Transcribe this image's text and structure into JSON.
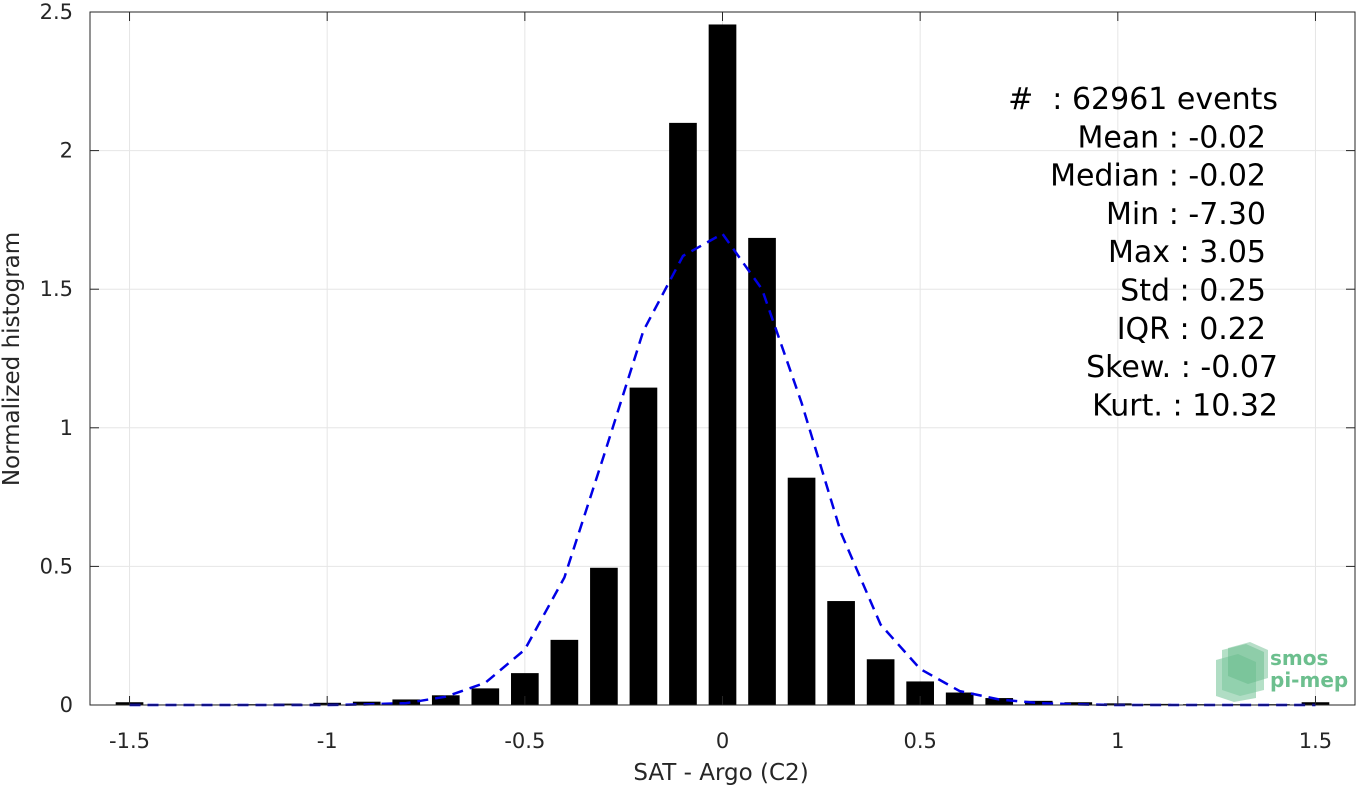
{
  "chart_data": {
    "type": "bar",
    "xlabel": "SAT - Argo (C2)",
    "ylabel": "Normalized histogram",
    "xlim": [
      -1.6,
      1.6
    ],
    "ylim": [
      0,
      2.5
    ],
    "xticks": [
      -1.5,
      -1,
      -0.5,
      0,
      0.5,
      1,
      1.5
    ],
    "xtick_labels": [
      "-1.5",
      "-1",
      "-0.5",
      "0",
      "0.5",
      "1",
      "1.5"
    ],
    "yticks": [
      0,
      0.5,
      1,
      1.5,
      2,
      2.5
    ],
    "ytick_labels": [
      "0",
      "0.5",
      "1",
      "1.5",
      "2",
      "2.5"
    ],
    "grid": true,
    "bar_width": 0.07,
    "series": [
      {
        "type": "bar",
        "color": "#000000",
        "x": [
          -1.5,
          -1.4,
          -1.3,
          -1.2,
          -1.1,
          -1.0,
          -0.9,
          -0.8,
          -0.7,
          -0.6,
          -0.5,
          -0.4,
          -0.3,
          -0.2,
          -0.1,
          0.0,
          0.1,
          0.2,
          0.3,
          0.4,
          0.5,
          0.6,
          0.7,
          0.8,
          0.9,
          1.0,
          1.1,
          1.2,
          1.3,
          1.4,
          1.5
        ],
        "values": [
          0.01,
          0.002,
          0.002,
          0.003,
          0.005,
          0.008,
          0.012,
          0.02,
          0.035,
          0.06,
          0.115,
          0.235,
          0.495,
          1.145,
          2.1,
          2.455,
          1.685,
          0.82,
          0.375,
          0.165,
          0.085,
          0.045,
          0.025,
          0.015,
          0.01,
          0.006,
          0.004,
          0.003,
          0.003,
          0.003,
          0.01
        ]
      },
      {
        "type": "line",
        "style": "dashed",
        "color": "#0000e6",
        "x": [
          -1.5,
          -1.4,
          -1.3,
          -1.2,
          -1.1,
          -1.0,
          -0.9,
          -0.8,
          -0.7,
          -0.6,
          -0.5,
          -0.4,
          -0.3,
          -0.2,
          -0.1,
          0.0,
          0.1,
          0.2,
          0.3,
          0.4,
          0.5,
          0.6,
          0.7,
          0.8,
          0.9,
          1.0,
          1.1,
          1.2,
          1.3,
          1.4,
          1.5
        ],
        "values": [
          0.0,
          0.0,
          0.0,
          0.0,
          0.0,
          0.0,
          0.002,
          0.007,
          0.03,
          0.08,
          0.2,
          0.46,
          0.9,
          1.35,
          1.62,
          1.7,
          1.5,
          1.09,
          0.62,
          0.29,
          0.13,
          0.05,
          0.02,
          0.007,
          0.002,
          0.0,
          0.0,
          0.0,
          0.0,
          0.0,
          0.0
        ]
      }
    ],
    "annotations": [
      "#  : 62961 events",
      "Mean : -0.02",
      "Median : -0.02",
      "Min : -7.30",
      "Max : 3.05",
      "Std : 0.25",
      "IQR : 0.22",
      "Skew. : -0.07",
      "Kurt. : 10.32"
    ]
  },
  "logo": {
    "line1": "smos",
    "line2": "pi-mep",
    "color": "#6cbf8e"
  }
}
